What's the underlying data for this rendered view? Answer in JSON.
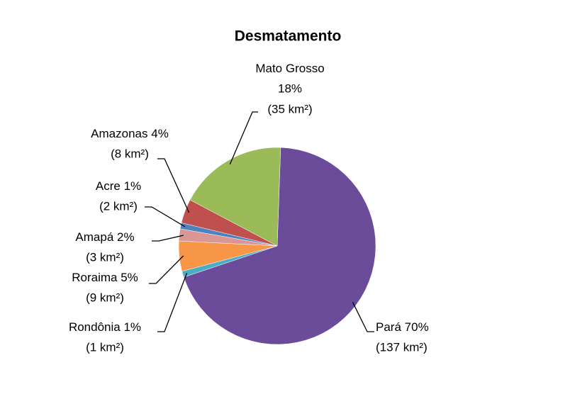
{
  "chart_data": {
    "type": "pie",
    "title": "Desmatamento",
    "categories": [
      "Pará",
      "Rondônia",
      "Roraima",
      "Amapá",
      "Acre",
      "Amazonas",
      "Mato Grosso"
    ],
    "values": [
      70,
      1,
      5,
      2,
      1,
      4,
      18
    ],
    "value_labels": [
      "70%",
      "1%",
      "5%",
      "2%",
      "1%",
      "4%",
      "18%"
    ],
    "area_labels": [
      "(137 km²)",
      "(1 km²)",
      "(9 km²)",
      "(3 km²)",
      "(2 km²)",
      "(8 km²)",
      "(35 km²)"
    ],
    "colors": [
      "#6b4c9a",
      "#4bacc6",
      "#f79646",
      "#d99694",
      "#4f81bd",
      "#c0504d",
      "#9bbb59"
    ]
  }
}
